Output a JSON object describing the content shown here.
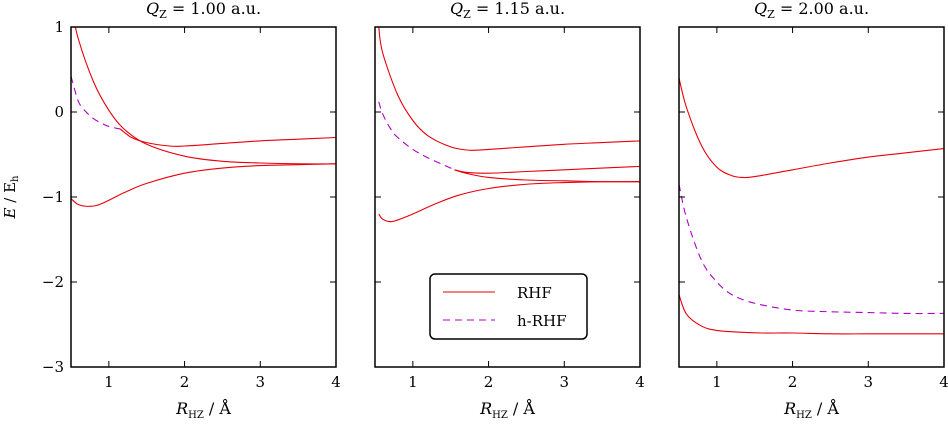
{
  "chart_data": [
    {
      "type": "line",
      "title": "Q_Z = 1.00 a.u.",
      "title_main": "Q",
      "title_sub": "Z",
      "title_rest": " = 1.00 a.u.",
      "xlabel_main": "R",
      "xlabel_sub": "HZ",
      "xlabel_rest": " / Å",
      "ylabel": "E / E_h",
      "xlim": [
        0.5,
        4.0
      ],
      "ylim": [
        -3,
        1
      ],
      "xticks": [
        "1",
        "2",
        "3",
        "4"
      ],
      "yticks": [
        "1",
        "0",
        "−1",
        "−2",
        "−3"
      ],
      "series": [
        {
          "method": "RHF",
          "x": [
            0.5,
            0.6,
            0.8,
            1.0,
            1.2,
            1.5,
            2.0,
            2.5,
            3.0,
            3.5,
            4.0
          ],
          "y": [
            1.25,
            0.85,
            0.35,
            0.02,
            -0.2,
            -0.38,
            -0.52,
            -0.58,
            -0.6,
            -0.61,
            -0.61
          ]
        },
        {
          "method": "RHF",
          "x": [
            0.5,
            0.6,
            0.75,
            0.9,
            1.2,
            1.5,
            2.0,
            2.5,
            3.0,
            3.5,
            4.0
          ],
          "y": [
            -1.02,
            -1.09,
            -1.11,
            -1.08,
            -0.95,
            -0.84,
            -0.72,
            -0.66,
            -0.63,
            -0.62,
            -0.61
          ]
        },
        {
          "method": "RHF",
          "x": [
            1.15,
            1.3,
            1.5,
            1.8,
            2.0,
            2.5,
            3.0,
            3.5,
            4.0
          ],
          "y": [
            -0.2,
            -0.3,
            -0.36,
            -0.4,
            -0.4,
            -0.37,
            -0.34,
            -0.32,
            -0.3
          ]
        },
        {
          "method": "h-RHF",
          "x": [
            0.5,
            0.6,
            0.7,
            0.8,
            0.9,
            1.0,
            1.15
          ],
          "y": [
            0.42,
            0.12,
            0.0,
            -0.08,
            -0.13,
            -0.17,
            -0.2
          ]
        }
      ]
    },
    {
      "type": "line",
      "title": "Q_Z = 1.15 a.u.",
      "title_main": "Q",
      "title_sub": "Z",
      "title_rest": " = 1.15 a.u.",
      "xlabel_main": "R",
      "xlabel_sub": "HZ",
      "xlabel_rest": " / Å",
      "xlim": [
        0.5,
        4.0
      ],
      "ylim": [
        -3,
        1
      ],
      "xticks": [
        "1",
        "2",
        "3",
        "4"
      ],
      "legend": {
        "position": "lower-right",
        "entries": [
          "RHF",
          "h-RHF"
        ]
      },
      "series": [
        {
          "method": "RHF",
          "x": [
            0.55,
            0.6,
            0.8,
            1.0,
            1.2,
            1.5,
            1.75,
            2.0,
            2.5,
            3.0,
            3.5,
            4.0
          ],
          "y": [
            1.0,
            0.7,
            0.2,
            -0.1,
            -0.28,
            -0.41,
            -0.45,
            -0.44,
            -0.41,
            -0.38,
            -0.36,
            -0.34
          ]
        },
        {
          "method": "RHF",
          "x": [
            0.55,
            0.6,
            0.7,
            0.8,
            1.0,
            1.3,
            1.6,
            2.0,
            2.5,
            3.0,
            3.5,
            4.0
          ],
          "y": [
            -1.2,
            -1.26,
            -1.29,
            -1.27,
            -1.2,
            -1.08,
            -0.98,
            -0.9,
            -0.85,
            -0.83,
            -0.82,
            -0.82
          ]
        },
        {
          "method": "RHF",
          "x": [
            1.55,
            1.7,
            2.0,
            2.5,
            3.0,
            3.5,
            4.0
          ],
          "y": [
            -0.68,
            -0.71,
            -0.72,
            -0.7,
            -0.68,
            -0.66,
            -0.64
          ]
        },
        {
          "method": "RHF",
          "x": [
            1.55,
            1.7,
            2.0,
            2.5,
            3.0,
            3.5,
            4.0
          ],
          "y": [
            -0.68,
            -0.72,
            -0.77,
            -0.8,
            -0.81,
            -0.82,
            -0.82
          ]
        },
        {
          "method": "h-RHF",
          "x": [
            0.55,
            0.6,
            0.7,
            0.8,
            1.0,
            1.2,
            1.4,
            1.55
          ],
          "y": [
            0.12,
            -0.02,
            -0.19,
            -0.3,
            -0.44,
            -0.54,
            -0.62,
            -0.68
          ]
        }
      ]
    },
    {
      "type": "line",
      "title": "Q_Z = 2.00 a.u.",
      "title_main": "Q",
      "title_sub": "Z",
      "title_rest": " = 2.00 a.u.",
      "xlabel_main": "R",
      "xlabel_sub": "HZ",
      "xlabel_rest": " / Å",
      "xlim": [
        0.5,
        4.0
      ],
      "ylim": [
        -3,
        1
      ],
      "xticks": [
        "1",
        "2",
        "3",
        "4"
      ],
      "series": [
        {
          "method": "RHF",
          "x": [
            0.5,
            0.6,
            0.8,
            1.0,
            1.2,
            1.35,
            1.5,
            2.0,
            2.5,
            3.0,
            3.5,
            4.0
          ],
          "y": [
            0.4,
            0.05,
            -0.4,
            -0.65,
            -0.75,
            -0.77,
            -0.76,
            -0.68,
            -0.6,
            -0.53,
            -0.48,
            -0.43
          ]
        },
        {
          "method": "h-RHF",
          "x": [
            0.5,
            0.6,
            0.8,
            1.0,
            1.2,
            1.5,
            2.0,
            2.5,
            3.0,
            3.5,
            4.0
          ],
          "y": [
            -0.85,
            -1.25,
            -1.75,
            -2.0,
            -2.15,
            -2.25,
            -2.33,
            -2.35,
            -2.36,
            -2.37,
            -2.37
          ]
        },
        {
          "method": "RHF",
          "x": [
            0.5,
            0.6,
            0.8,
            1.0,
            1.3,
            1.6,
            2.0,
            2.5,
            3.0,
            3.5,
            4.0
          ],
          "y": [
            -2.15,
            -2.38,
            -2.52,
            -2.57,
            -2.59,
            -2.6,
            -2.6,
            -2.61,
            -2.61,
            -2.61,
            -2.61
          ]
        }
      ]
    }
  ],
  "ylabel_parts": {
    "var": "E",
    "sep": " / E",
    "sub": "h"
  },
  "legend_labels": {
    "rhf": "RHF",
    "hrhf": "h-RHF"
  }
}
